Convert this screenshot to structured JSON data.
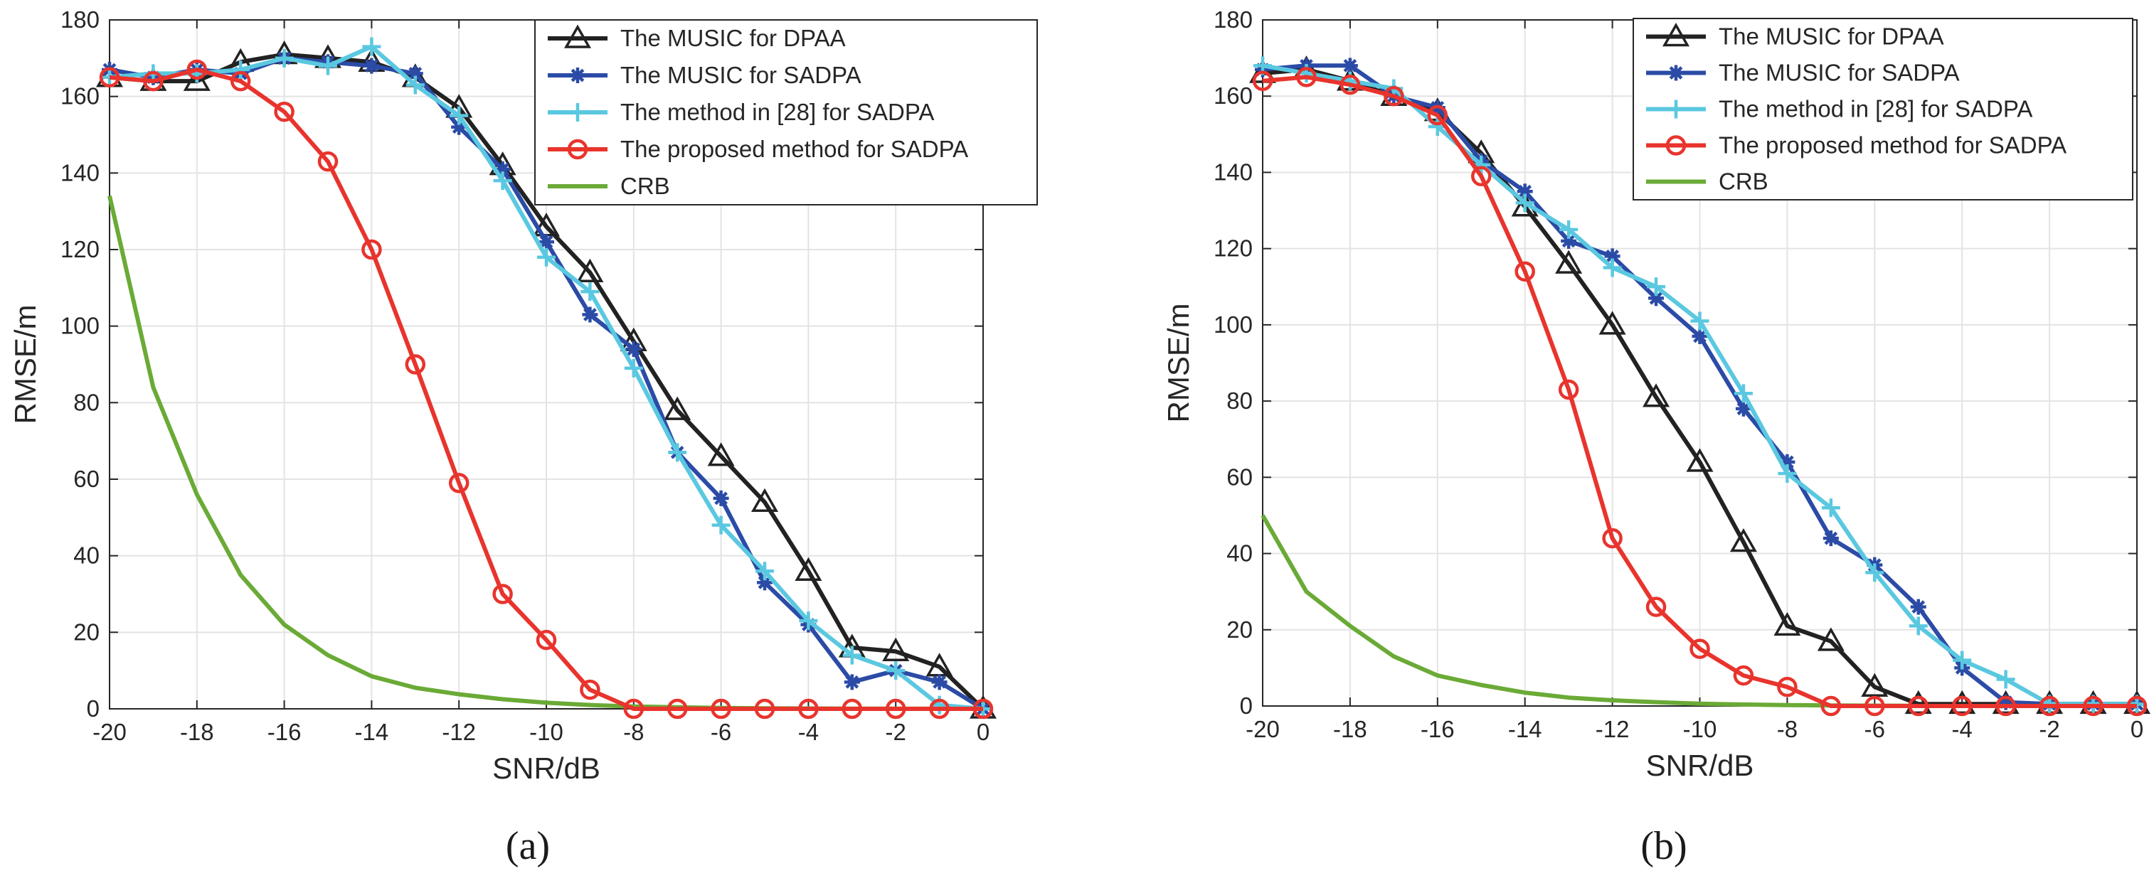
{
  "chart_data": [
    {
      "type": "line",
      "panel_label": "(a)",
      "xlabel": "SNR/dB",
      "ylabel": "RMSE/m",
      "xlim": [
        -20,
        0
      ],
      "ylim": [
        0,
        180
      ],
      "xticks": [
        -20,
        -18,
        -16,
        -14,
        -12,
        -10,
        -8,
        -6,
        -4,
        -2,
        0
      ],
      "yticks": [
        0,
        20,
        40,
        60,
        80,
        100,
        120,
        140,
        160,
        180
      ],
      "grid": true,
      "legend_position": "top-right",
      "x": [
        -20,
        -19,
        -18,
        -17,
        -16,
        -15,
        -14,
        -13,
        -12,
        -11,
        -10,
        -9,
        -8,
        -7,
        -6,
        -5,
        -4,
        -3,
        -2,
        -1,
        0
      ],
      "series": [
        {
          "name": "The MUSIC for DPAA",
          "color": "#222222",
          "marker": "triangle",
          "values": [
            165,
            164,
            164,
            169,
            171,
            170,
            169,
            165,
            157,
            142,
            126,
            114,
            96,
            78,
            66,
            54,
            36,
            16,
            15,
            11,
            0
          ]
        },
        {
          "name": "The MUSIC for SADPA",
          "color": "#2b4ba6",
          "marker": "star",
          "values": [
            167,
            165,
            167,
            166,
            170,
            169,
            168,
            166,
            152,
            141,
            122,
            103,
            94,
            67,
            55,
            33,
            22,
            7,
            10,
            7,
            0
          ]
        },
        {
          "name": "The method in [28] for SADPA",
          "color": "#5ac8e0",
          "marker": "plus",
          "values": [
            165,
            166,
            166,
            167,
            170,
            168,
            173,
            163,
            155,
            138,
            118,
            109,
            89,
            67,
            48,
            36,
            23,
            14,
            10,
            1,
            0
          ]
        },
        {
          "name": "The proposed method for SADPA",
          "color": "#e8342d",
          "marker": "circle",
          "values": [
            165,
            164,
            167,
            164,
            156,
            143,
            120,
            90,
            59,
            30,
            18,
            5,
            0,
            0,
            0,
            0,
            0,
            0,
            0,
            0,
            0
          ]
        },
        {
          "name": "CRB",
          "color": "#6aaa36",
          "marker": "none",
          "values": [
            134,
            84,
            56,
            35,
            22,
            14,
            8.5,
            5.5,
            3.8,
            2.5,
            1.6,
            1.0,
            0.6,
            0.4,
            0.25,
            0.15,
            0.1,
            0.06,
            0.04,
            0.02,
            0.01
          ]
        }
      ]
    },
    {
      "type": "line",
      "panel_label": "(b)",
      "xlabel": "SNR/dB",
      "ylabel": "RMSE/m",
      "xlim": [
        -20,
        0
      ],
      "ylim": [
        0,
        180
      ],
      "xticks": [
        -20,
        -18,
        -16,
        -14,
        -12,
        -10,
        -8,
        -6,
        -4,
        -2,
        0
      ],
      "yticks": [
        0,
        20,
        40,
        60,
        80,
        100,
        120,
        140,
        160,
        180
      ],
      "grid": true,
      "legend_position": "top-right",
      "x": [
        -20,
        -19,
        -18,
        -17,
        -16,
        -15,
        -14,
        -13,
        -12,
        -11,
        -10,
        -9,
        -8,
        -7,
        -6,
        -5,
        -4,
        -3,
        -2,
        -1,
        0
      ],
      "series": [
        {
          "name": "The MUSIC for DPAA",
          "color": "#222222",
          "marker": "triangle",
          "values": [
            166,
            167,
            164,
            160,
            156,
            145,
            131,
            116,
            100,
            81,
            64,
            43,
            21,
            17,
            5,
            0.5,
            0.5,
            0.5,
            0.5,
            0.5,
            0.5
          ]
        },
        {
          "name": "The MUSIC for SADPA",
          "color": "#2b4ba6",
          "marker": "star",
          "values": [
            167,
            168,
            168,
            160,
            157,
            143,
            135,
            122,
            118,
            107,
            97,
            78,
            64,
            44,
            37,
            26,
            10,
            1,
            0.5,
            0.5,
            0.5
          ]
        },
        {
          "name": "The method in [28] for SADPA",
          "color": "#5ac8e0",
          "marker": "plus",
          "values": [
            168,
            166,
            164,
            162,
            152,
            142,
            132,
            125,
            115,
            110,
            101,
            82,
            61,
            52,
            35,
            21,
            12,
            7,
            0.5,
            0.5,
            0.5
          ]
        },
        {
          "name": "The proposed method for SADPA",
          "color": "#e8342d",
          "marker": "circle",
          "values": [
            164,
            165,
            163,
            160,
            155,
            139,
            114,
            83,
            44,
            26,
            15,
            8,
            5,
            0,
            0,
            0,
            0,
            0,
            0,
            0,
            0
          ]
        },
        {
          "name": "CRB",
          "color": "#6aaa36",
          "marker": "none",
          "values": [
            50,
            30,
            21,
            13,
            8,
            5.5,
            3.5,
            2.2,
            1.5,
            1.0,
            0.6,
            0.4,
            0.25,
            0.15,
            0.1,
            0.06,
            0.04,
            0.02,
            0.01,
            0.01,
            0.01
          ]
        }
      ]
    }
  ]
}
